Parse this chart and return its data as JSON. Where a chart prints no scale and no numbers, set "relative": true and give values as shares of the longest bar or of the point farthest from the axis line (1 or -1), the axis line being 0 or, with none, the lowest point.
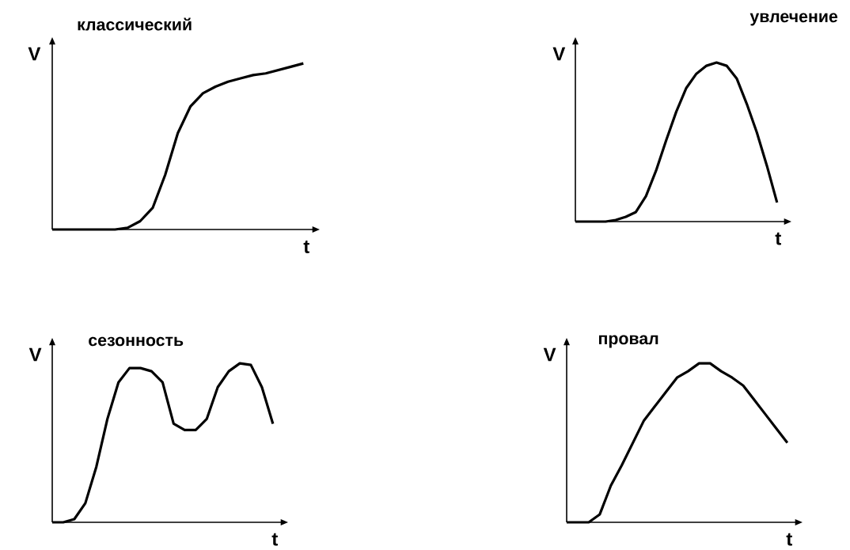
{
  "chart_data": [
    {
      "type": "line",
      "title": "классический",
      "xlabel": "t",
      "ylabel": "V",
      "relative": true,
      "color": "#000000",
      "categories": [
        null,
        null,
        null,
        null,
        null,
        null,
        null,
        null,
        null,
        null,
        null,
        null,
        null,
        null,
        null,
        null,
        null,
        null,
        null,
        null,
        null
      ],
      "values": [
        0,
        0,
        0,
        0,
        0,
        0,
        0.01,
        0.05,
        0.13,
        0.33,
        0.58,
        0.74,
        0.82,
        0.86,
        0.89,
        0.91,
        0.93,
        0.94,
        0.96,
        0.98,
        1
      ]
    },
    {
      "type": "line",
      "title": "увлечение",
      "xlabel": "t",
      "ylabel": "V",
      "relative": true,
      "color": "#000000",
      "categories": [
        null,
        null,
        null,
        null,
        null,
        null,
        null,
        null,
        null,
        null,
        null,
        null,
        null,
        null,
        null,
        null,
        null,
        null,
        null,
        null,
        null
      ],
      "values": [
        0,
        0,
        0,
        0,
        0.01,
        0.03,
        0.06,
        0.16,
        0.32,
        0.51,
        0.69,
        0.84,
        0.93,
        0.98,
        1,
        0.98,
        0.9,
        0.74,
        0.56,
        0.35,
        0.12
      ]
    },
    {
      "type": "line",
      "title": "сезонность",
      "xlabel": "t",
      "ylabel": "V",
      "relative": true,
      "color": "#000000",
      "categories": [
        null,
        null,
        null,
        null,
        null,
        null,
        null,
        null,
        null,
        null,
        null,
        null,
        null,
        null,
        null,
        null,
        null,
        null,
        null,
        null,
        null
      ],
      "values": [
        0,
        0,
        0.02,
        0.12,
        0.35,
        0.65,
        0.88,
        0.97,
        0.97,
        0.95,
        0.88,
        0.62,
        0.58,
        0.58,
        0.65,
        0.85,
        0.95,
        1,
        0.99,
        0.85,
        0.62
      ]
    },
    {
      "type": "line",
      "title": "провал",
      "xlabel": "t",
      "ylabel": "V",
      "relative": true,
      "color": "#000000",
      "categories": [
        null,
        null,
        null,
        null,
        null,
        null,
        null,
        null,
        null,
        null,
        null,
        null,
        null,
        null,
        null,
        null,
        null,
        null,
        null,
        null,
        null
      ],
      "values": [
        0,
        0,
        0,
        0.05,
        0.23,
        0.36,
        0.5,
        0.64,
        0.73,
        0.82,
        0.91,
        0.95,
        1,
        1,
        0.95,
        0.91,
        0.86,
        0.77,
        0.68,
        0.59,
        0.5
      ]
    }
  ]
}
